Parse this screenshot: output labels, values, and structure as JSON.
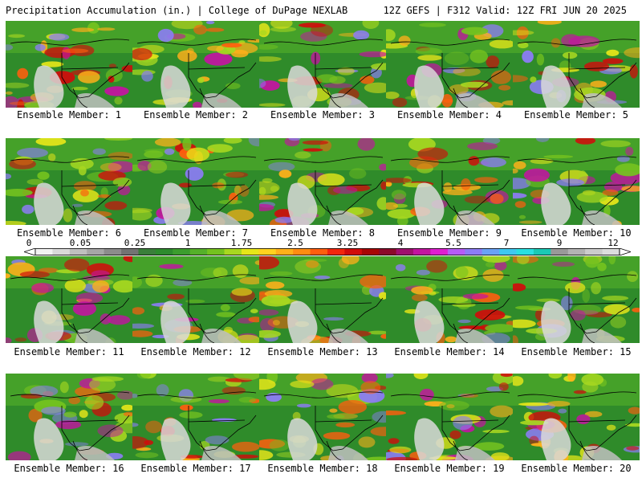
{
  "header": {
    "left": "Precipitation Accumulation (in.) | College of DuPage NEXLAB",
    "right": "12Z GEFS | F312 Valid: 12Z FRI JUN 20 2025"
  },
  "panels": [
    {
      "label": "Ensemble Member: 1"
    },
    {
      "label": "Ensemble Member: 2"
    },
    {
      "label": "Ensemble Member: 3"
    },
    {
      "label": "Ensemble Member: 4"
    },
    {
      "label": "Ensemble Member: 5"
    },
    {
      "label": "Ensemble Member: 6"
    },
    {
      "label": "Ensemble Member: 7"
    },
    {
      "label": "Ensemble Member: 8"
    },
    {
      "label": "Ensemble Member: 9"
    },
    {
      "label": "Ensemble Member: 10"
    },
    {
      "label": "Ensemble Member: 11"
    },
    {
      "label": "Ensemble Member: 12"
    },
    {
      "label": "Ensemble Member: 13"
    },
    {
      "label": "Ensemble Member: 14"
    },
    {
      "label": "Ensemble Member: 15"
    },
    {
      "label": "Ensemble Member: 16"
    },
    {
      "label": "Ensemble Member: 17"
    },
    {
      "label": "Ensemble Member: 18"
    },
    {
      "label": "Ensemble Member: 19"
    },
    {
      "label": "Ensemble Member: 20"
    }
  ],
  "colorbar": {
    "tick_labels": [
      "0",
      "0.05",
      "0.25",
      "1",
      "1.75",
      "2.5",
      "3.25",
      "4",
      "5.5",
      "7",
      "9",
      "12"
    ],
    "colors": [
      "#f2f2f2",
      "#d9d9d9",
      "#bfbfbf",
      "#a6a6a6",
      "#8c8c8c",
      "#737373",
      "#3a7f3a",
      "#2e8b2e",
      "#3c9d2e",
      "#55b02a",
      "#74c21f",
      "#a8d820",
      "#e6e619",
      "#ffd21f",
      "#ffb01a",
      "#ff8c12",
      "#ff5e0e",
      "#f2260d",
      "#d10b0b",
      "#a80606",
      "#8c0a2a",
      "#a0106e",
      "#c314a0",
      "#e01ed0",
      "#b65cf5",
      "#8c7cf5",
      "#6aa2f5",
      "#3fc8f0",
      "#2ae0e0",
      "#1ac9b5",
      "#999999",
      "#b3b3b3",
      "#cccccc",
      "#dddddd"
    ]
  }
}
